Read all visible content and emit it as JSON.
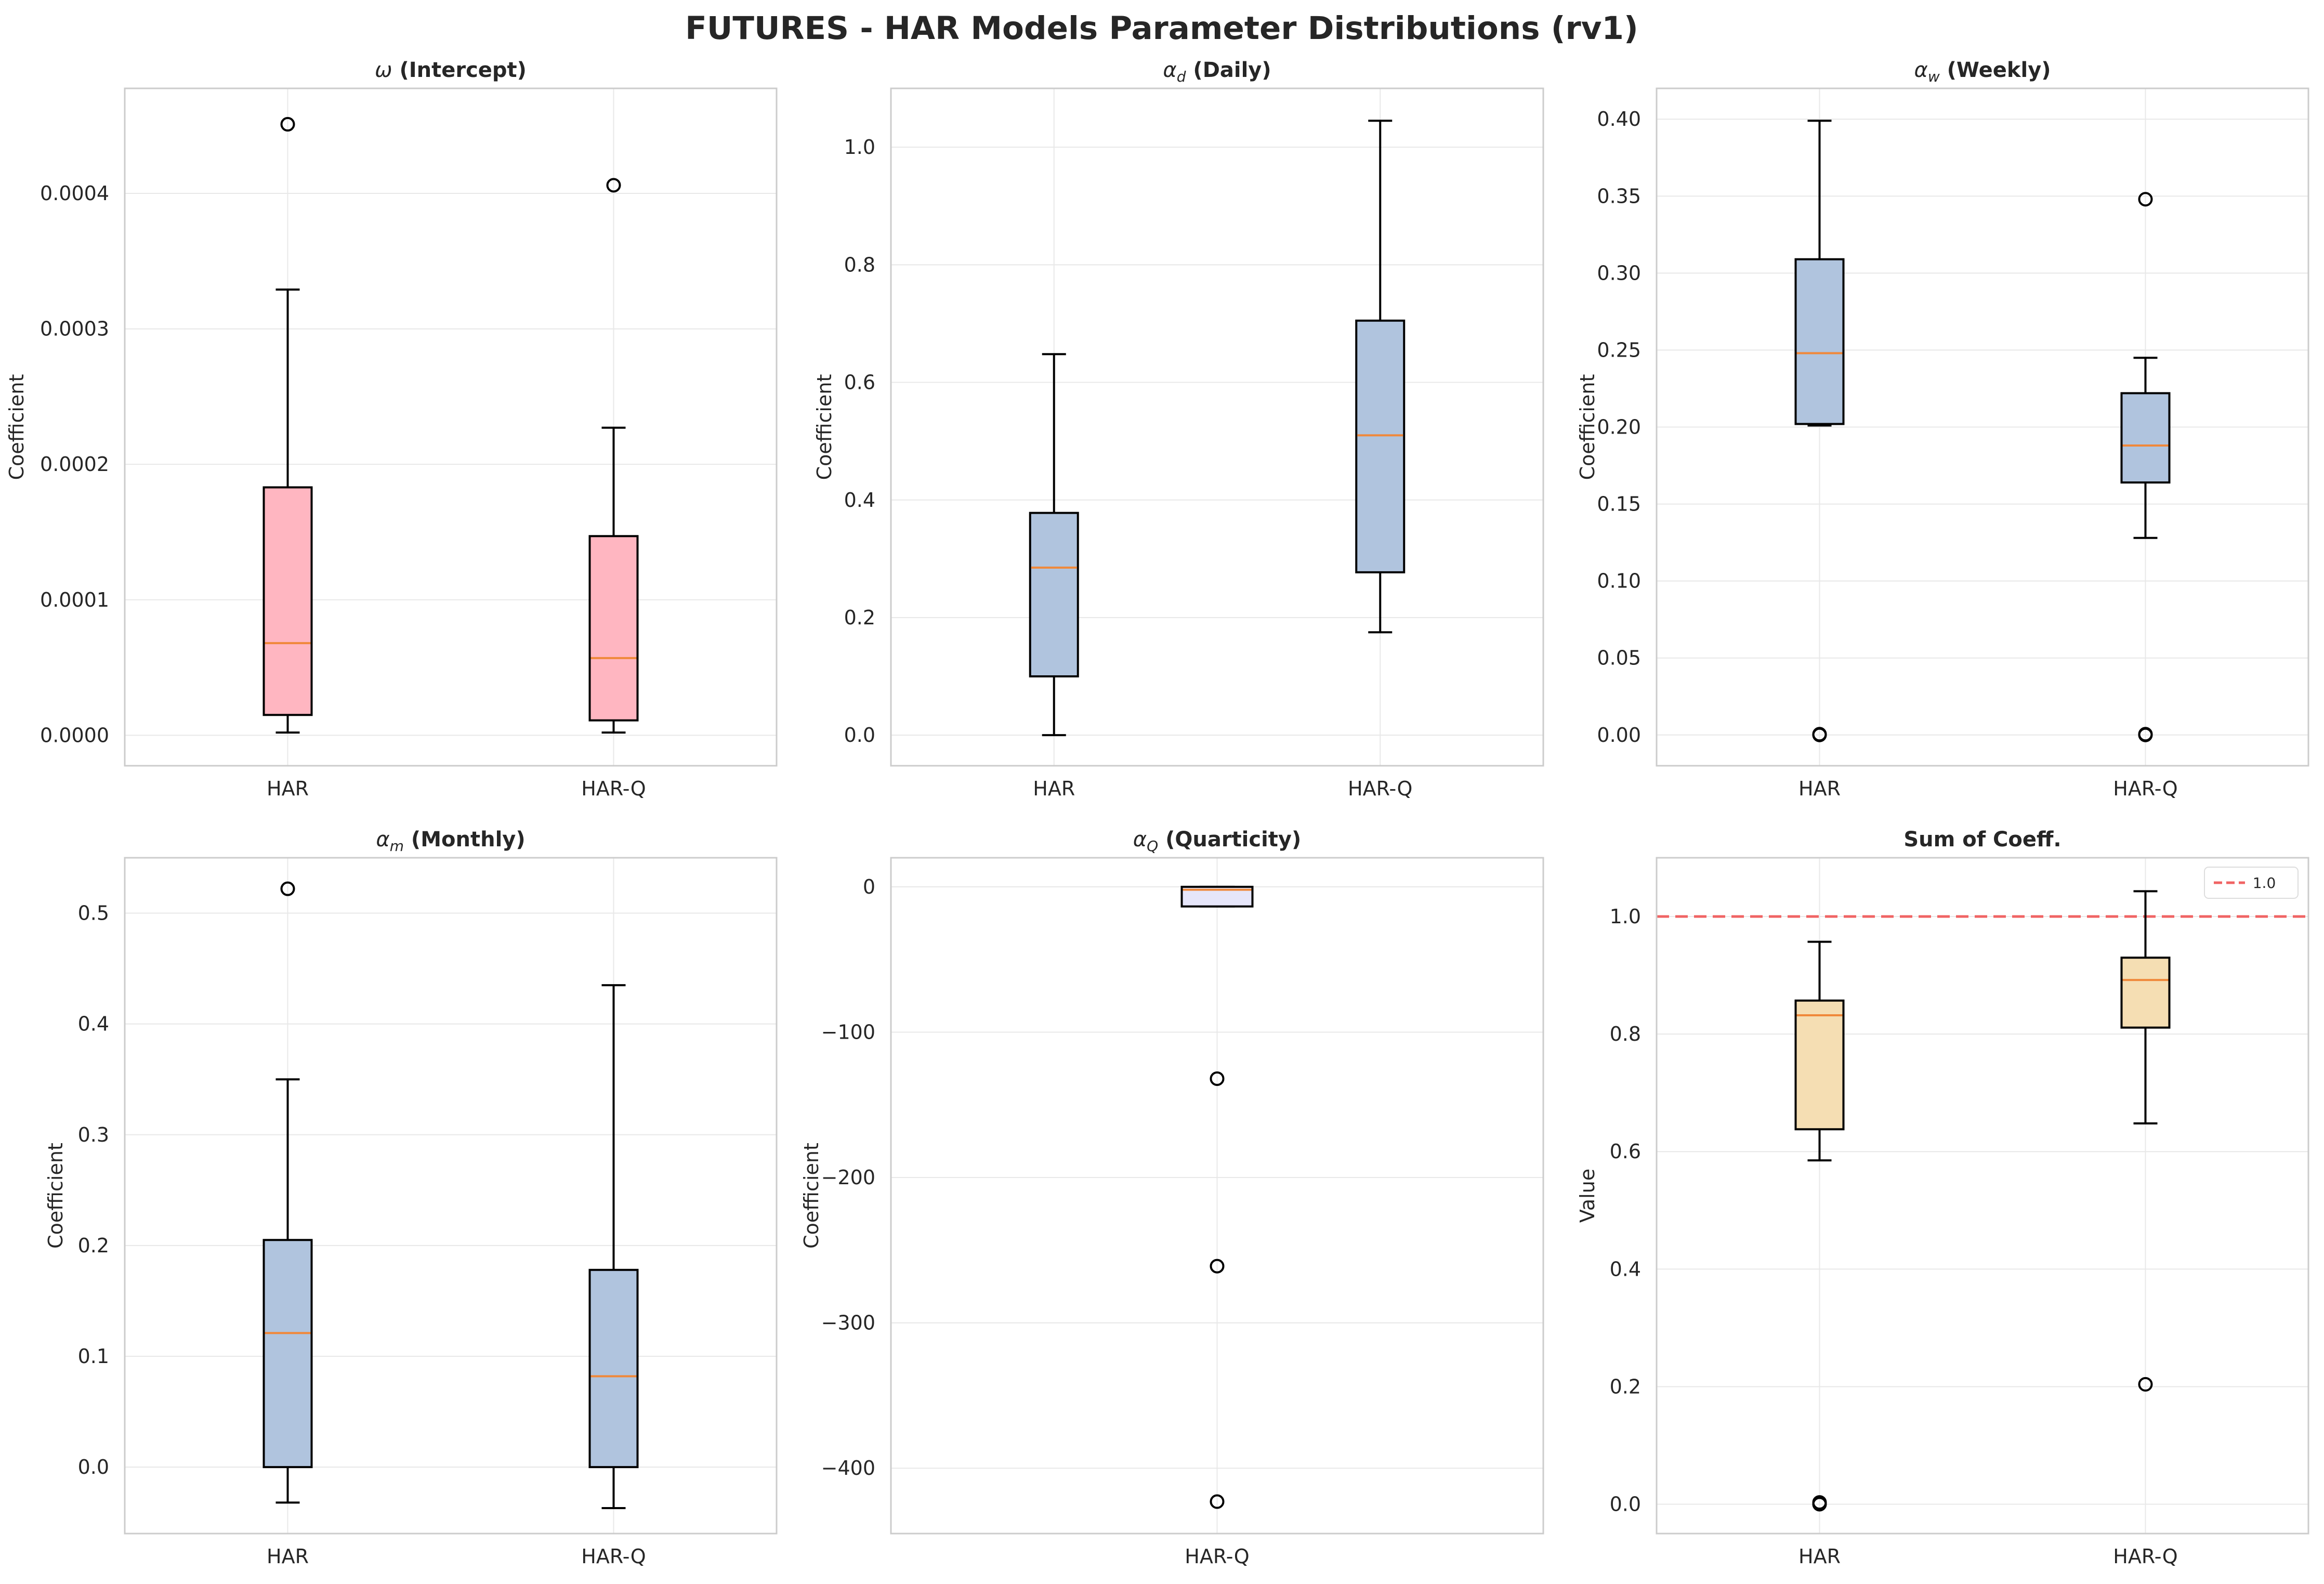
{
  "title": "FUTURES - HAR Models Parameter Distributions (rv1)",
  "colors": {
    "pink_box": "#FFB6C1",
    "blue_box": "#B0C4DE",
    "lavender_box": "#E6E6FA",
    "wheat_box": "#F5DEB3",
    "median": "#F0883A",
    "refline": "#F06464",
    "grid": "#E8E8E8",
    "spine": "#CCCCCC"
  },
  "chart_data": [
    {
      "type": "boxplot",
      "title_symbol": "ω",
      "title_text": "(Intercept)",
      "ylabel": "Coefficient",
      "ylim": [
        -2.25e-05,
        0.0004775
      ],
      "yticks": [
        0.0,
        0.0001,
        0.0002,
        0.0003,
        0.0004
      ],
      "ytick_labels": [
        "0.0000",
        "0.0001",
        "0.0002",
        "0.0003",
        "0.0004"
      ],
      "categories": [
        "HAR",
        "HAR-Q"
      ],
      "box_color": "#FFB6C1",
      "boxes": [
        {
          "label": "HAR",
          "whisker_low": 2e-06,
          "q1": 1.5e-05,
          "median": 6.8e-05,
          "q3": 0.000183,
          "whisker_high": 0.000329,
          "outliers": [
            0.000451
          ]
        },
        {
          "label": "HAR-Q",
          "whisker_low": 2e-06,
          "q1": 1.1e-05,
          "median": 5.7e-05,
          "q3": 0.000147,
          "whisker_high": 0.000227,
          "outliers": [
            0.000406
          ]
        }
      ]
    },
    {
      "type": "boxplot",
      "title_symbol": "α",
      "title_sub": "d",
      "title_text": "(Daily)",
      "ylabel": "Coefficient",
      "ylim": [
        -0.052,
        1.1
      ],
      "yticks": [
        0.0,
        0.2,
        0.4,
        0.6,
        0.8,
        1.0
      ],
      "ytick_labels": [
        "0.0",
        "0.2",
        "0.4",
        "0.6",
        "0.8",
        "1.0"
      ],
      "categories": [
        "HAR",
        "HAR-Q"
      ],
      "box_color": "#B0C4DE",
      "boxes": [
        {
          "label": "HAR",
          "whisker_low": 0.0,
          "q1": 0.1,
          "median": 0.285,
          "q3": 0.378,
          "whisker_high": 0.648,
          "outliers": []
        },
        {
          "label": "HAR-Q",
          "whisker_low": 0.175,
          "q1": 0.277,
          "median": 0.51,
          "q3": 0.705,
          "whisker_high": 1.045,
          "outliers": []
        }
      ]
    },
    {
      "type": "boxplot",
      "title_symbol": "α",
      "title_sub": "w",
      "title_text": "(Weekly)",
      "ylabel": "Coefficient",
      "ylim": [
        -0.02,
        0.42
      ],
      "yticks": [
        0.0,
        0.05,
        0.1,
        0.15,
        0.2,
        0.25,
        0.3,
        0.35,
        0.4
      ],
      "ytick_labels": [
        "0.00",
        "0.05",
        "0.10",
        "0.15",
        "0.20",
        "0.25",
        "0.30",
        "0.35",
        "0.40"
      ],
      "categories": [
        "HAR",
        "HAR-Q"
      ],
      "box_color": "#B0C4DE",
      "boxes": [
        {
          "label": "HAR",
          "whisker_low": 0.201,
          "q1": 0.202,
          "median": 0.248,
          "q3": 0.309,
          "whisker_high": 0.399,
          "outliers": [
            0.0,
            0.0005
          ]
        },
        {
          "label": "HAR-Q",
          "whisker_low": 0.128,
          "q1": 0.164,
          "median": 0.188,
          "q3": 0.222,
          "whisker_high": 0.245,
          "outliers": [
            0.348,
            0.0,
            0.0005
          ]
        }
      ]
    },
    {
      "type": "boxplot",
      "title_symbol": "α",
      "title_sub": "m",
      "title_text": "(Monthly)",
      "ylabel": "Coefficient",
      "ylim": [
        -0.06,
        0.55
      ],
      "yticks": [
        0.0,
        0.1,
        0.2,
        0.3,
        0.4,
        0.5
      ],
      "ytick_labels": [
        "0.0",
        "0.1",
        "0.2",
        "0.3",
        "0.4",
        "0.5"
      ],
      "categories": [
        "HAR",
        "HAR-Q"
      ],
      "box_color": "#B0C4DE",
      "boxes": [
        {
          "label": "HAR",
          "whisker_low": -0.032,
          "q1": 0.0,
          "median": 0.121,
          "q3": 0.205,
          "whisker_high": 0.35,
          "outliers": [
            0.522
          ]
        },
        {
          "label": "HAR-Q",
          "whisker_low": -0.037,
          "q1": 0.0,
          "median": 0.082,
          "q3": 0.178,
          "whisker_high": 0.435,
          "outliers": []
        }
      ]
    },
    {
      "type": "boxplot",
      "title_symbol": "α",
      "title_sub": "Q",
      "title_text": "(Quarticity)",
      "ylabel": "Coefficient",
      "ylim": [
        -445,
        20
      ],
      "yticks": [
        0,
        -100,
        -200,
        -300,
        -400
      ],
      "ytick_labels": [
        "0",
        "−100",
        "−200",
        "−300",
        "−400"
      ],
      "categories": [
        "HAR-Q"
      ],
      "box_color": "#E6E6FA",
      "boxes": [
        {
          "label": "HAR-Q",
          "whisker_low": -13.5,
          "q1": -13.5,
          "median": -2.0,
          "q3": 0.0,
          "whisker_high": 0.0,
          "outliers": [
            -132,
            -261,
            -423
          ]
        }
      ]
    },
    {
      "type": "boxplot",
      "title_symbol": "",
      "title_text": "Sum of Coeff.",
      "ylabel": "Value",
      "ylim": [
        -0.05,
        1.1
      ],
      "yticks": [
        0.0,
        0.2,
        0.4,
        0.6,
        0.8,
        1.0
      ],
      "ytick_labels": [
        "0.0",
        "0.2",
        "0.4",
        "0.6",
        "0.8",
        "1.0"
      ],
      "categories": [
        "HAR",
        "HAR-Q"
      ],
      "box_color": "#F5DEB3",
      "refline": {
        "value": 1.0,
        "label": "1.0"
      },
      "boxes": [
        {
          "label": "HAR",
          "whisker_low": 0.585,
          "q1": 0.638,
          "median": 0.832,
          "q3": 0.857,
          "whisker_high": 0.957,
          "outliers": [
            0.0,
            0.003
          ]
        },
        {
          "label": "HAR-Q",
          "whisker_low": 0.648,
          "q1": 0.811,
          "median": 0.892,
          "q3": 0.93,
          "whisker_high": 1.043,
          "outliers": [
            0.204
          ]
        }
      ]
    }
  ]
}
